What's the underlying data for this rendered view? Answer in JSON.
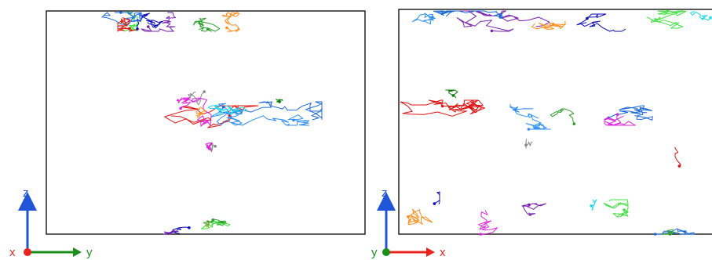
{
  "panels": [
    {
      "id": "left",
      "axes": {
        "horizontal": "y",
        "vertical": "z",
        "out_of_plane": "x"
      }
    },
    {
      "id": "right",
      "axes": {
        "horizontal": "x",
        "vertical": "z",
        "out_of_plane": "y"
      }
    }
  ],
  "colors": {
    "x_axis": "#e8261e",
    "y_axis": "#1a8f1a",
    "z_axis": "#1f55d6",
    "frame": "#000000",
    "trajectories": [
      "#e01010",
      "#2f8ff0",
      "#e020e0",
      "#1a6ad8",
      "#3fe03f",
      "#7a1fb0",
      "#ff8c1a",
      "#1fd8e8",
      "#0a0ab8",
      "#888888",
      "#0a7a0a",
      "#2ca02c"
    ]
  }
}
